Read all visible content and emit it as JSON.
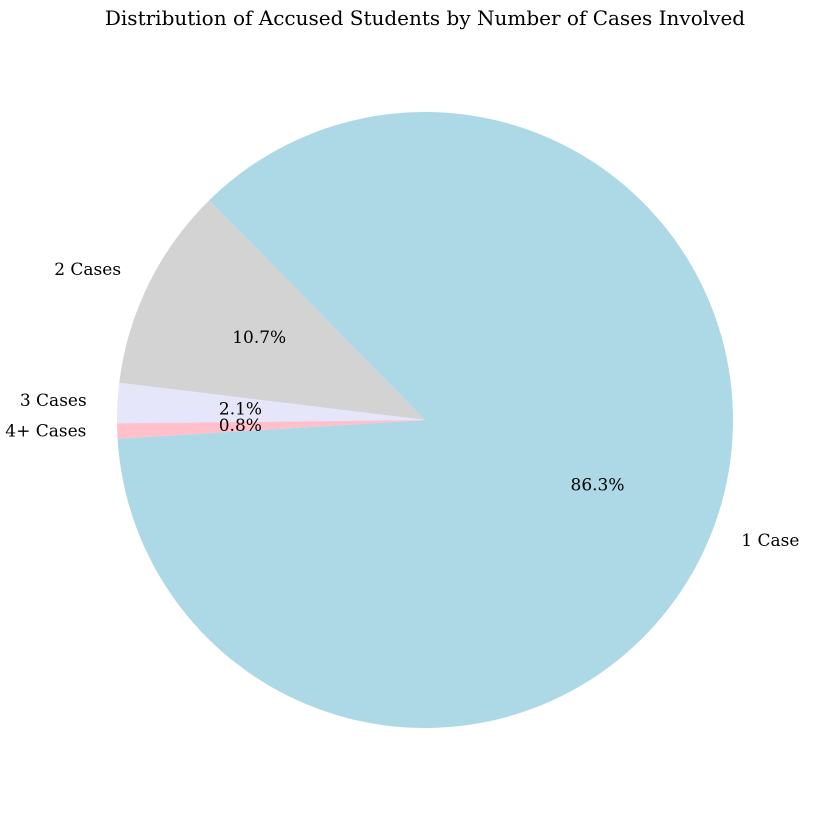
{
  "chart_data": {
    "type": "pie",
    "title": "Distribution of Accused Students by Number of Cases Involved",
    "slices": [
      {
        "label": "1 Case",
        "value": 86.3,
        "percent_label": "86.3%",
        "color": "#add8e6"
      },
      {
        "label": "2 Cases",
        "value": 10.7,
        "percent_label": "10.7%",
        "color": "#d3d3d3"
      },
      {
        "label": "3 Cases",
        "value": 2.1,
        "percent_label": "2.1%",
        "color": "#e6e6fa"
      },
      {
        "label": "4+ Cases",
        "value": 0.8,
        "percent_label": "0.8%",
        "color": "#ffc0cb"
      }
    ]
  }
}
